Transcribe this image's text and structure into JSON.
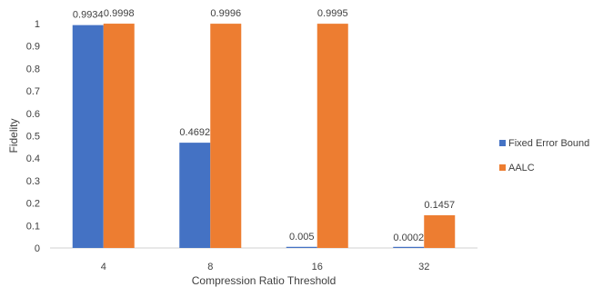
{
  "chart_data": {
    "type": "bar",
    "categories": [
      "4",
      "8",
      "16",
      "32"
    ],
    "series": [
      {
        "name": "Fixed Error Bound",
        "values": [
          0.9934,
          0.4692,
          0.005,
          0.0002
        ],
        "labels": [
          "0.9934",
          "0.4692",
          "0.005",
          "0.0002"
        ],
        "color": "#4472c4"
      },
      {
        "name": "AALC",
        "values": [
          0.9998,
          0.9996,
          0.9995,
          0.1457
        ],
        "labels": [
          "0.9998",
          "0.9996",
          "0.9995",
          "0.1457"
        ],
        "color": "#ed7d31"
      }
    ],
    "xlabel": "Compression Ratio Threshold",
    "ylabel": "Fidelity",
    "ylim": [
      0,
      1
    ],
    "yticks": [
      "0",
      "0.1",
      "0.2",
      "0.3",
      "0.4",
      "0.5",
      "0.6",
      "0.7",
      "0.8",
      "0.9",
      "1"
    ],
    "grid": false,
    "legend_position": "right"
  }
}
